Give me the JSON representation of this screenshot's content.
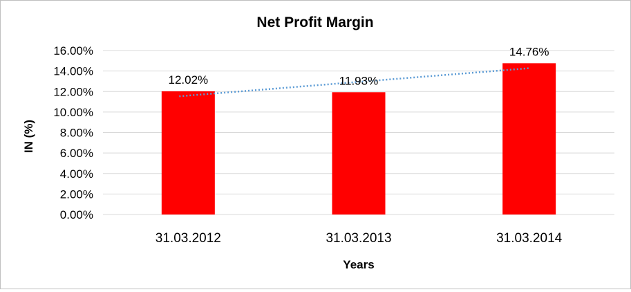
{
  "chart_data": {
    "type": "bar",
    "title": "Net Profit Margin",
    "xlabel": "Years",
    "ylabel": "IN (%)",
    "categories": [
      "31.03.2012",
      "31.03.2013",
      "31.03.2014"
    ],
    "values": [
      12.02,
      11.93,
      14.76
    ],
    "data_labels": [
      "12.02%",
      "11.93%",
      "14.76%"
    ],
    "ylim": [
      0,
      16
    ],
    "y_ticks": [
      0,
      2,
      4,
      6,
      8,
      10,
      12,
      14,
      16
    ],
    "y_tick_labels": [
      "0.00%",
      "2.00%",
      "4.00%",
      "6.00%",
      "8.00%",
      "10.00%",
      "12.00%",
      "14.00%",
      "16.00%"
    ],
    "grid": true,
    "legend": "none",
    "trendline": {
      "type": "linear",
      "style": "dotted"
    },
    "colors": {
      "bar": "#ff0000",
      "trendline": "#5b9bd5",
      "grid": "#d9d9d9"
    }
  }
}
